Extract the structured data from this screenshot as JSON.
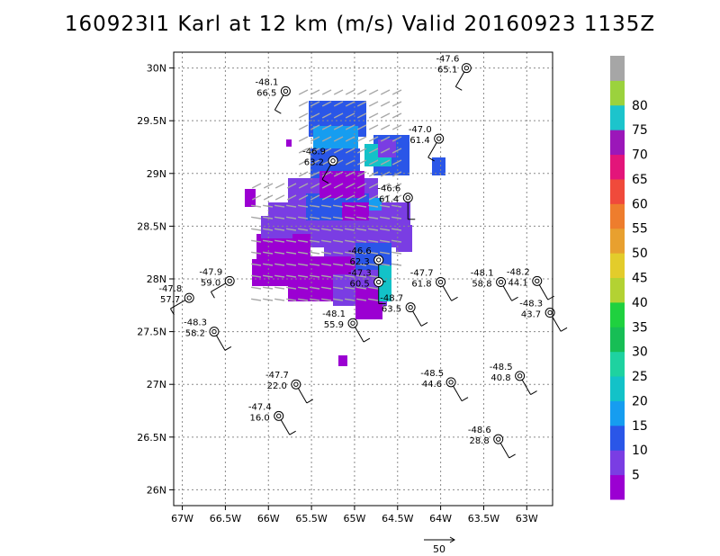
{
  "title": "160923I1 Karl at 12 km (m/s) Valid 20160923 1135Z",
  "reference_vector_label": "50",
  "chart_data": {
    "type": "map",
    "title": "160923I1 Karl at 12 km (m/s) Valid 20160923 1135Z",
    "xlim": [
      -67.1,
      -62.7
    ],
    "ylim": [
      25.85,
      30.15
    ],
    "x_ticks": [
      {
        "value": -67,
        "label": "67W"
      },
      {
        "value": -66.5,
        "label": "66.5W"
      },
      {
        "value": -66,
        "label": "66W"
      },
      {
        "value": -65.5,
        "label": "65.5W"
      },
      {
        "value": -65,
        "label": "65W"
      },
      {
        "value": -64.5,
        "label": "64.5W"
      },
      {
        "value": -64,
        "label": "64W"
      },
      {
        "value": -63.5,
        "label": "63.5W"
      },
      {
        "value": -63,
        "label": "63W"
      }
    ],
    "y_ticks": [
      {
        "value": 26,
        "label": "26N"
      },
      {
        "value": 26.5,
        "label": "26.5N"
      },
      {
        "value": 27,
        "label": "27N"
      },
      {
        "value": 27.5,
        "label": "27.5N"
      },
      {
        "value": 28,
        "label": "28N"
      },
      {
        "value": 28.5,
        "label": "28.5N"
      },
      {
        "value": 29,
        "label": "29N"
      },
      {
        "value": 29.5,
        "label": "29.5N"
      },
      {
        "value": 30,
        "label": "30N"
      }
    ],
    "grid": true,
    "colorbar": {
      "bins": [
        {
          "label": "5",
          "color": "#9b00d2"
        },
        {
          "label": "10",
          "color": "#7a3de3"
        },
        {
          "label": "15",
          "color": "#2a56e8"
        },
        {
          "label": "20",
          "color": "#169df0"
        },
        {
          "label": "25",
          "color": "#13c2c8"
        },
        {
          "label": "30",
          "color": "#1ed2a0"
        },
        {
          "label": "35",
          "color": "#17be55"
        },
        {
          "label": "40",
          "color": "#1fd13f"
        },
        {
          "label": "45",
          "color": "#b3d233"
        },
        {
          "label": "50",
          "color": "#e3cc2b"
        },
        {
          "label": "55",
          "color": "#e8a02f"
        },
        {
          "label": "60",
          "color": "#ee7d2d"
        },
        {
          "label": "65",
          "color": "#f04a3b"
        },
        {
          "label": "70",
          "color": "#e3157a"
        },
        {
          "label": "75",
          "color": "#9b17b9"
        },
        {
          "label": "80",
          "color": "#1cc4cc"
        },
        {
          "label": "",
          "color": "#9bd23d"
        },
        {
          "label": "",
          "color": "#a6a6a6"
        }
      ]
    },
    "observations": [
      {
        "lon": -63.7,
        "lat": 30.0,
        "top": "-47.6",
        "bottom": "65.1",
        "dir": 330
      },
      {
        "lon": -65.8,
        "lat": 29.78,
        "top": "-48.1",
        "bottom": "66.5",
        "dir": 330
      },
      {
        "lon": -64.02,
        "lat": 29.33,
        "top": "-47.0",
        "bottom": "61.4",
        "dir": 330
      },
      {
        "lon": -65.25,
        "lat": 29.12,
        "top": "-46.9",
        "bottom": "63.2",
        "dir": 330
      },
      {
        "lon": -64.38,
        "lat": 28.77,
        "top": "-46.6",
        "bottom": "61.4",
        "dir": 0
      },
      {
        "lon": -64.72,
        "lat": 28.18,
        "top": "-46.6",
        "bottom": "62.3",
        "dir": 0
      },
      {
        "lon": -64.72,
        "lat": 27.97,
        "top": "-47.3",
        "bottom": "60.5",
        "dir": 0
      },
      {
        "lon": -64.35,
        "lat": 27.73,
        "top": "-48.7",
        "bottom": "63.5",
        "dir": 30
      },
      {
        "lon": -64.0,
        "lat": 27.97,
        "top": "-47.7",
        "bottom": "61.8",
        "dir": 30
      },
      {
        "lon": -63.3,
        "lat": 27.97,
        "top": "-48.1",
        "bottom": "58.8",
        "dir": 30
      },
      {
        "lon": -62.88,
        "lat": 27.98,
        "top": "-48.2",
        "bottom": "44.1",
        "dir": 30
      },
      {
        "lon": -62.73,
        "lat": 27.68,
        "top": "-48.3",
        "bottom": "43.7",
        "dir": 30
      },
      {
        "lon": -66.45,
        "lat": 27.98,
        "top": "-47.9",
        "bottom": "59.0",
        "dir": 300
      },
      {
        "lon": -66.92,
        "lat": 27.82,
        "top": "-47.8",
        "bottom": "57.7",
        "dir": 300
      },
      {
        "lon": -66.63,
        "lat": 27.5,
        "top": "-48.3",
        "bottom": "58.2",
        "dir": 30
      },
      {
        "lon": -65.02,
        "lat": 27.58,
        "top": "-48.1",
        "bottom": "55.9",
        "dir": 30
      },
      {
        "lon": -63.88,
        "lat": 27.02,
        "top": "-48.5",
        "bottom": "44.6",
        "dir": 30
      },
      {
        "lon": -63.08,
        "lat": 27.08,
        "top": "-48.5",
        "bottom": "40.8",
        "dir": 30
      },
      {
        "lon": -65.68,
        "lat": 27.0,
        "top": "-47.7",
        "bottom": "22.0",
        "dir": 30
      },
      {
        "lon": -65.88,
        "lat": 26.7,
        "top": "-47.4",
        "bottom": "16.0",
        "dir": 30
      },
      {
        "lon": -63.33,
        "lat": 26.48,
        "top": "-48.6",
        "bottom": "28.8",
        "dir": 30
      }
    ]
  }
}
